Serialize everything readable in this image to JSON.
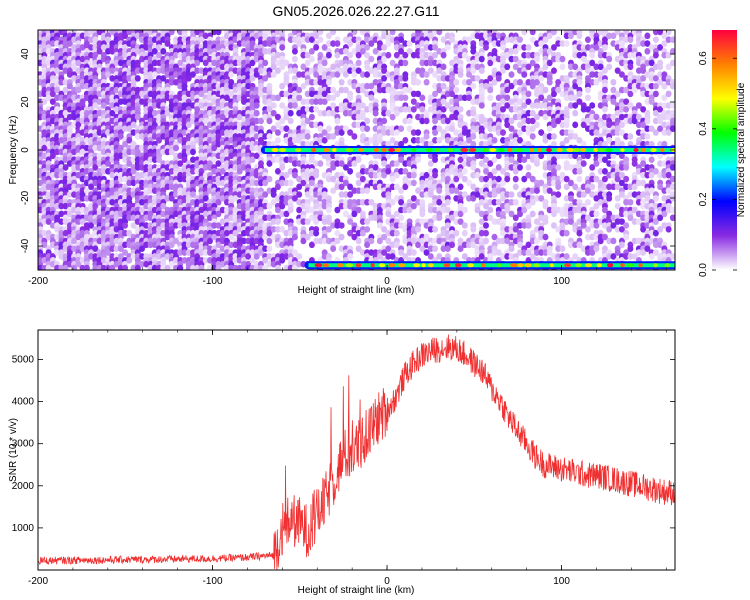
{
  "title": "GN05.2026.026.22.27.G11",
  "chart_data": [
    {
      "type": "heatmap",
      "xlabel": "Height of straight line (km)",
      "ylabel": "Frequency (Hz)",
      "xlim": [
        -200,
        165
      ],
      "ylim": [
        -50,
        50
      ],
      "x_ticks": [
        -200,
        -100,
        0,
        100
      ],
      "y_ticks": [
        -40,
        -20,
        0,
        20,
        40
      ],
      "colorbar": {
        "label": "Normalized spectral amplitude",
        "range": [
          0,
          0.68
        ],
        "ticks": [
          "0.0",
          "0.2",
          "0.4",
          "0.6"
        ],
        "colormap": [
          "#ffffff",
          "#8a2be2",
          "#0000ff",
          "#00ffff",
          "#00ff00",
          "#ffff00",
          "#ff8000",
          "#ff0040"
        ]
      },
      "features": [
        {
          "name": "dc line",
          "frequency_hz": 0,
          "x_start_km": -70,
          "x_end_km": 165,
          "amplitude": 0.4
        },
        {
          "name": "lower band line",
          "frequency_hz": -48,
          "x_start_km": -45,
          "x_end_km": 165,
          "amplitude": 0.25
        }
      ]
    },
    {
      "type": "line",
      "xlabel": "Height of straight line (km)",
      "ylabel": "SNR (10 * v/v)",
      "xlim": [
        -200,
        165
      ],
      "ylim": [
        0,
        5700
      ],
      "x_ticks": [
        -200,
        -100,
        0,
        100
      ],
      "y_ticks": [
        1000,
        2000,
        3000,
        4000,
        5000
      ],
      "color": "#f03030",
      "series": [
        {
          "x": [
            -200,
            -180,
            -160,
            -140,
            -120,
            -100,
            -80,
            -65,
            -60,
            -55,
            -50,
            -45,
            -40,
            -35,
            -30,
            -25,
            -20,
            -15,
            -10,
            -5,
            0,
            5,
            10,
            15,
            20,
            25,
            30,
            35,
            40,
            45,
            50,
            55,
            60,
            65,
            70,
            75,
            80,
            85,
            90,
            95,
            100,
            105,
            110,
            115,
            120,
            125,
            130,
            135,
            140,
            145,
            150,
            155,
            160,
            165
          ],
          "values": [
            220,
            230,
            240,
            250,
            260,
            270,
            300,
            350,
            1000,
            1200,
            1100,
            900,
            1300,
            1700,
            2200,
            2700,
            2800,
            3000,
            3300,
            3600,
            3800,
            4100,
            4600,
            4900,
            5100,
            5200,
            5250,
            5300,
            5250,
            5100,
            4900,
            4700,
            4300,
            4000,
            3600,
            3300,
            3000,
            2700,
            2500,
            2450,
            2400,
            2350,
            2300,
            2250,
            2250,
            2200,
            2150,
            2100,
            2050,
            2000,
            1950,
            1900,
            1850,
            1850
          ]
        }
      ]
    }
  ]
}
